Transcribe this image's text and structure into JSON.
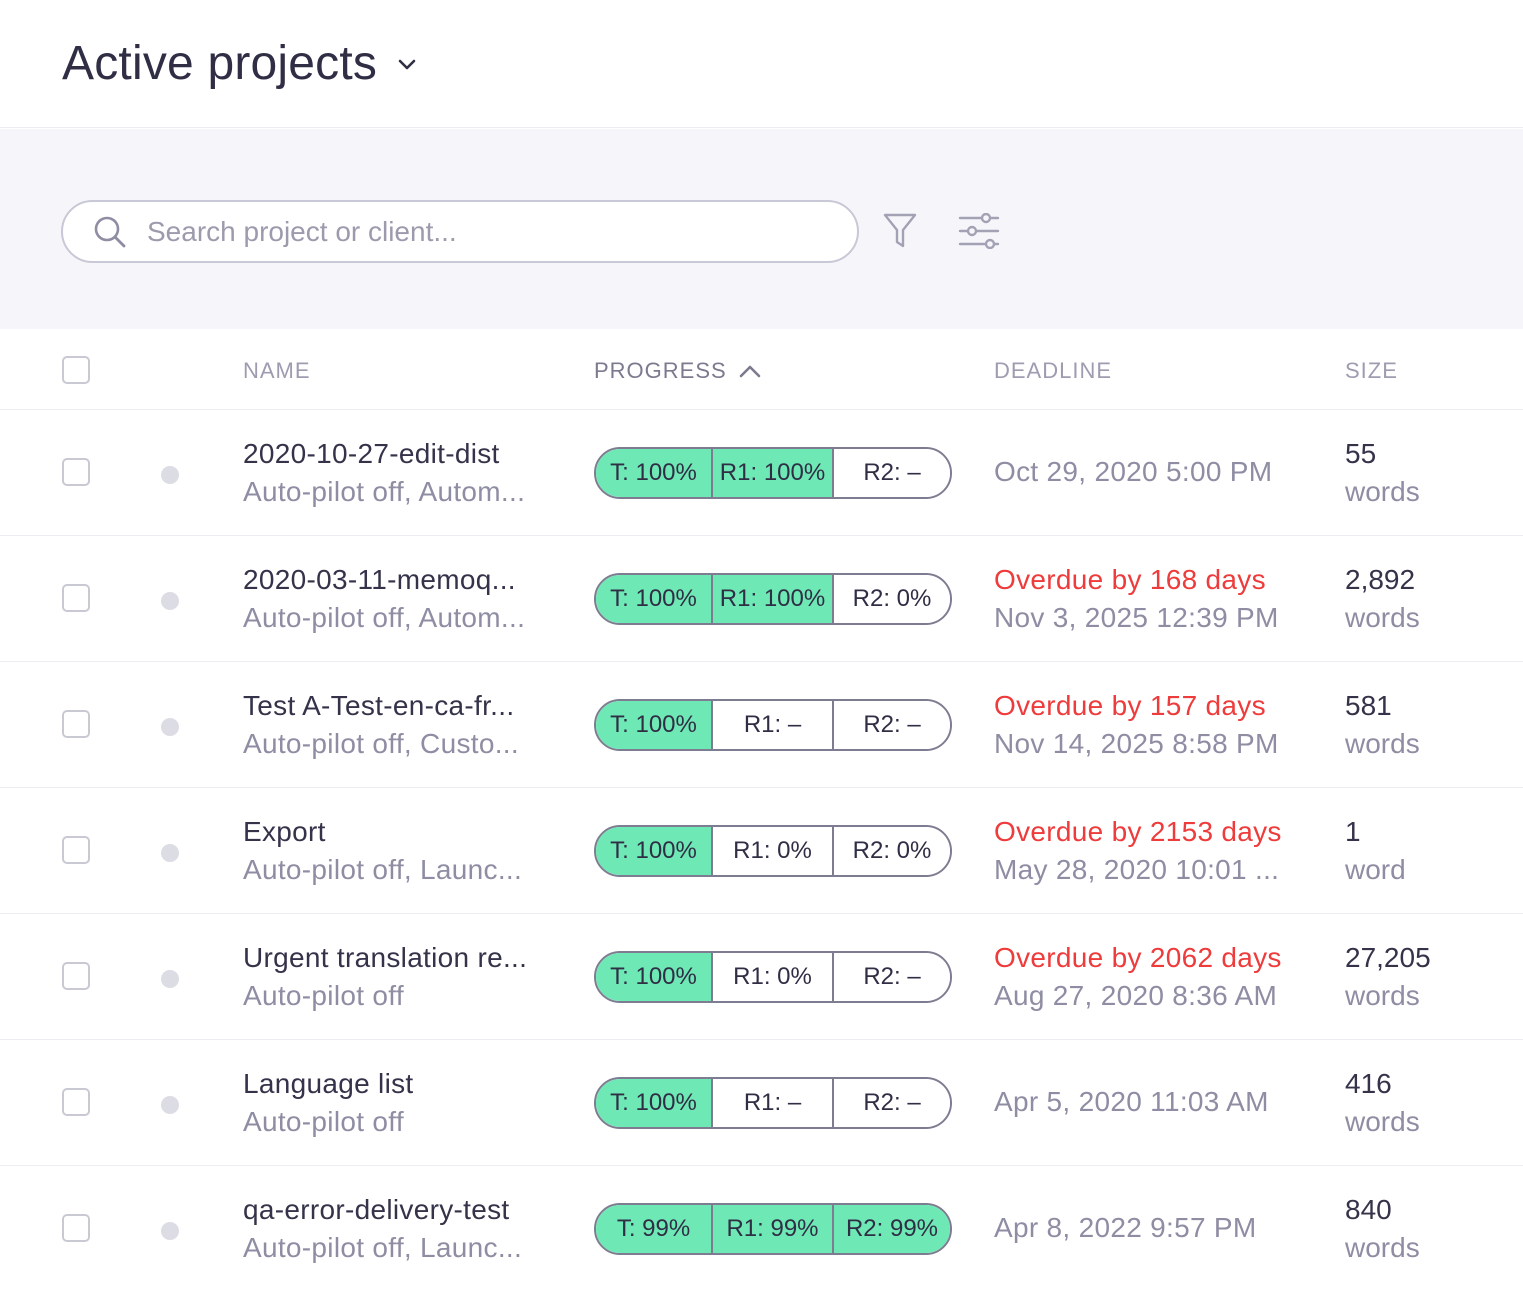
{
  "header": {
    "title": "Active projects"
  },
  "search": {
    "placeholder": "Search project or client..."
  },
  "columns": {
    "name": "NAME",
    "progress": "PROGRESS",
    "deadline": "DEADLINE",
    "size": "SIZE"
  },
  "colors": {
    "progress_complete": "#6ee8b4",
    "overdue": "#ee3b3b"
  },
  "rows": [
    {
      "name": "2020-10-27-edit-dist",
      "sub": "Auto-pilot off, Autom...",
      "progress": [
        {
          "label": "T: 100%",
          "complete": true
        },
        {
          "label": "R1: 100%",
          "complete": true
        },
        {
          "label": "R2: –",
          "complete": false
        }
      ],
      "overdue": "",
      "deadline": "Oct 29, 2020 5:00 PM",
      "size_num": "55",
      "size_unit": "words"
    },
    {
      "name": "2020-03-11-memoq...",
      "sub": "Auto-pilot off, Autom...",
      "progress": [
        {
          "label": "T: 100%",
          "complete": true
        },
        {
          "label": "R1: 100%",
          "complete": true
        },
        {
          "label": "R2: 0%",
          "complete": false
        }
      ],
      "overdue": "Overdue by 168 days",
      "deadline": "Nov 3, 2025 12:39 PM",
      "size_num": "2,892",
      "size_unit": "words"
    },
    {
      "name": "Test A-Test-en-ca-fr...",
      "sub": "Auto-pilot off, Custo...",
      "progress": [
        {
          "label": "T: 100%",
          "complete": true
        },
        {
          "label": "R1: –",
          "complete": false
        },
        {
          "label": "R2: –",
          "complete": false
        }
      ],
      "overdue": "Overdue by 157 days",
      "deadline": "Nov 14, 2025 8:58 PM",
      "size_num": "581",
      "size_unit": "words"
    },
    {
      "name": "Export",
      "sub": "Auto-pilot off, Launc...",
      "progress": [
        {
          "label": "T: 100%",
          "complete": true
        },
        {
          "label": "R1: 0%",
          "complete": false
        },
        {
          "label": "R2: 0%",
          "complete": false
        }
      ],
      "overdue": "Overdue by 2153 days",
      "deadline": "May 28, 2020 10:01 ...",
      "size_num": "1",
      "size_unit": "word"
    },
    {
      "name": "Urgent translation re...",
      "sub": "Auto-pilot off",
      "progress": [
        {
          "label": "T: 100%",
          "complete": true
        },
        {
          "label": "R1: 0%",
          "complete": false
        },
        {
          "label": "R2: –",
          "complete": false
        }
      ],
      "overdue": "Overdue by 2062 days",
      "deadline": "Aug 27, 2020 8:36 AM",
      "size_num": "27,205",
      "size_unit": "words"
    },
    {
      "name": "Language list",
      "sub": "Auto-pilot off",
      "progress": [
        {
          "label": "T: 100%",
          "complete": true
        },
        {
          "label": "R1: –",
          "complete": false
        },
        {
          "label": "R2: –",
          "complete": false
        }
      ],
      "overdue": "",
      "deadline": "Apr 5, 2020 11:03 AM",
      "size_num": "416",
      "size_unit": "words"
    },
    {
      "name": "qa-error-delivery-test",
      "sub": "Auto-pilot off, Launc...",
      "progress": [
        {
          "label": "T: 99%",
          "complete": true
        },
        {
          "label": "R1: 99%",
          "complete": true
        },
        {
          "label": "R2: 99%",
          "complete": true
        }
      ],
      "overdue": "",
      "deadline": "Apr 8, 2022 9:57 PM",
      "size_num": "840",
      "size_unit": "words"
    }
  ]
}
